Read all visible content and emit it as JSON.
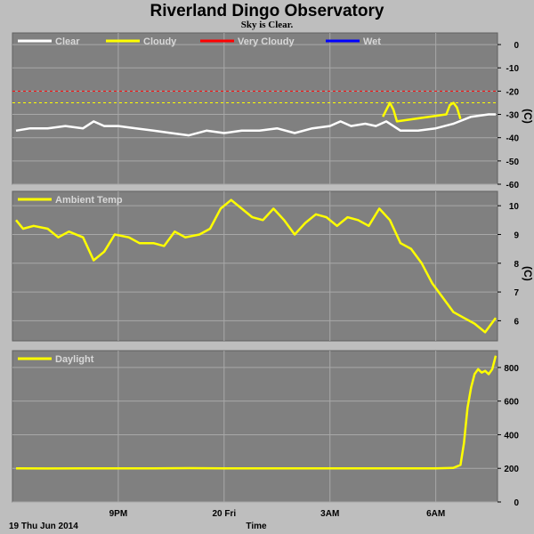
{
  "header": {
    "title": "Riverland Dingo Observatory",
    "subtitle": "Sky is Clear."
  },
  "footer": {
    "date_label": "19 Thu Jun 2014",
    "axis_label": "Time"
  },
  "colors": {
    "background": "#bebebe",
    "plot_bg": "#808080",
    "grid": "#a8a8a8",
    "clear": "#ffffff",
    "cloudy": "#ffff00",
    "very_cloudy": "#ff0000",
    "wet": "#0000ff"
  },
  "chart_data": [
    {
      "type": "line",
      "title": "",
      "unit_label": "(C)",
      "ylim": [
        -60,
        5
      ],
      "yticks": [
        0,
        -10,
        -20,
        -30,
        -40,
        -50,
        -60
      ],
      "xticks": [
        "9PM",
        "20 Fri",
        "3AM",
        "6AM"
      ],
      "xlim_hours": [
        18.0,
        31.75
      ],
      "x_tick_hours": [
        21,
        24,
        27,
        30
      ],
      "legend": [
        {
          "name": "Clear",
          "color": "#ffffff"
        },
        {
          "name": "Cloudy",
          "color": "#ffff00"
        },
        {
          "name": "Very Cloudy",
          "color": "#ff0000"
        },
        {
          "name": "Wet",
          "color": "#0000ff"
        }
      ],
      "threshold_lines": [
        {
          "name": "Very Cloudy",
          "value": -20,
          "color": "#ff0000"
        },
        {
          "name": "Cloudy",
          "value": -25,
          "color": "#ffff00"
        }
      ],
      "series": [
        {
          "name": "Clear",
          "color": "#ffffff",
          "x": [
            18.1,
            18.5,
            19.0,
            19.5,
            20.0,
            20.3,
            20.6,
            21.0,
            21.5,
            22.0,
            22.5,
            23.0,
            23.5,
            24.0,
            24.5,
            25.0,
            25.5,
            26.0,
            26.5,
            27.0,
            27.3,
            27.6,
            28.0,
            28.3,
            28.6,
            28.9,
            29.0,
            29.5,
            30.0,
            30.5,
            31.0,
            31.5,
            31.7
          ],
          "values": [
            -37,
            -36,
            -36,
            -35,
            -36,
            -33,
            -35,
            -35,
            -36,
            -37,
            -38,
            -39,
            -37,
            -38,
            -37,
            -37,
            -36,
            -38,
            -36,
            -35,
            -33,
            -35,
            -34,
            -35,
            -33,
            -36,
            -37,
            -37,
            -36,
            -34,
            -31,
            -30,
            -30
          ]
        },
        {
          "name": "Cloudy",
          "color": "#ffff00",
          "x": [
            28.5,
            28.6,
            28.7,
            28.8,
            28.9,
            30.3,
            30.4,
            30.5,
            30.6,
            30.7
          ],
          "values": [
            -31,
            -28,
            -25,
            -28,
            -33,
            -30,
            -26,
            -25,
            -27,
            -32
          ]
        }
      ]
    },
    {
      "type": "line",
      "title": "",
      "unit_label": "(C)",
      "ylim": [
        5.3,
        10.5
      ],
      "yticks": [
        10,
        9,
        8,
        7,
        6
      ],
      "xticks": [
        "9PM",
        "20 Fri",
        "3AM",
        "6AM"
      ],
      "xlim_hours": [
        18.0,
        31.75
      ],
      "x_tick_hours": [
        21,
        24,
        27,
        30
      ],
      "legend": [
        {
          "name": "Ambient Temp",
          "color": "#ffff00"
        }
      ],
      "series": [
        {
          "name": "Ambient Temp",
          "color": "#ffff00",
          "x": [
            18.1,
            18.3,
            18.6,
            19.0,
            19.3,
            19.6,
            20.0,
            20.3,
            20.6,
            20.9,
            21.3,
            21.6,
            22.0,
            22.3,
            22.6,
            22.9,
            23.3,
            23.6,
            23.9,
            24.2,
            24.5,
            24.8,
            25.1,
            25.4,
            25.7,
            26.0,
            26.3,
            26.6,
            26.9,
            27.2,
            27.5,
            27.8,
            28.1,
            28.4,
            28.7,
            29.0,
            29.3,
            29.6,
            29.9,
            30.2,
            30.5,
            30.8,
            31.1,
            31.4,
            31.7
          ],
          "values": [
            9.5,
            9.2,
            9.3,
            9.2,
            8.9,
            9.1,
            8.9,
            8.1,
            8.4,
            9.0,
            8.9,
            8.7,
            8.7,
            8.6,
            9.1,
            8.9,
            9.0,
            9.2,
            9.9,
            10.2,
            9.9,
            9.6,
            9.5,
            9.9,
            9.5,
            9.0,
            9.4,
            9.7,
            9.6,
            9.3,
            9.6,
            9.5,
            9.3,
            9.9,
            9.5,
            8.7,
            8.5,
            8.0,
            7.3,
            6.8,
            6.3,
            6.1,
            5.9,
            5.6,
            6.1
          ]
        }
      ]
    },
    {
      "type": "line",
      "title": "",
      "unit_label": "",
      "ylim": [
        0,
        900
      ],
      "yticks": [
        800,
        600,
        400,
        200,
        0
      ],
      "xticks": [
        "9PM",
        "20 Fri",
        "3AM",
        "6AM"
      ],
      "xlim_hours": [
        18.0,
        31.75
      ],
      "x_tick_hours": [
        21,
        24,
        27,
        30
      ],
      "legend": [
        {
          "name": "Daylight",
          "color": "#ffff00"
        }
      ],
      "series": [
        {
          "name": "Daylight",
          "color": "#ffff00",
          "x": [
            18.1,
            19.0,
            20.0,
            21.0,
            22.0,
            23.0,
            24.0,
            25.0,
            26.0,
            27.0,
            28.0,
            29.0,
            30.0,
            30.5,
            30.7,
            30.8,
            30.9,
            31.0,
            31.1,
            31.2,
            31.3,
            31.4,
            31.5,
            31.6,
            31.7
          ],
          "values": [
            200,
            199,
            200,
            200,
            200,
            201,
            200,
            200,
            200,
            200,
            200,
            200,
            200,
            203,
            220,
            350,
            560,
            680,
            760,
            790,
            770,
            780,
            760,
            790,
            870
          ]
        }
      ]
    }
  ]
}
